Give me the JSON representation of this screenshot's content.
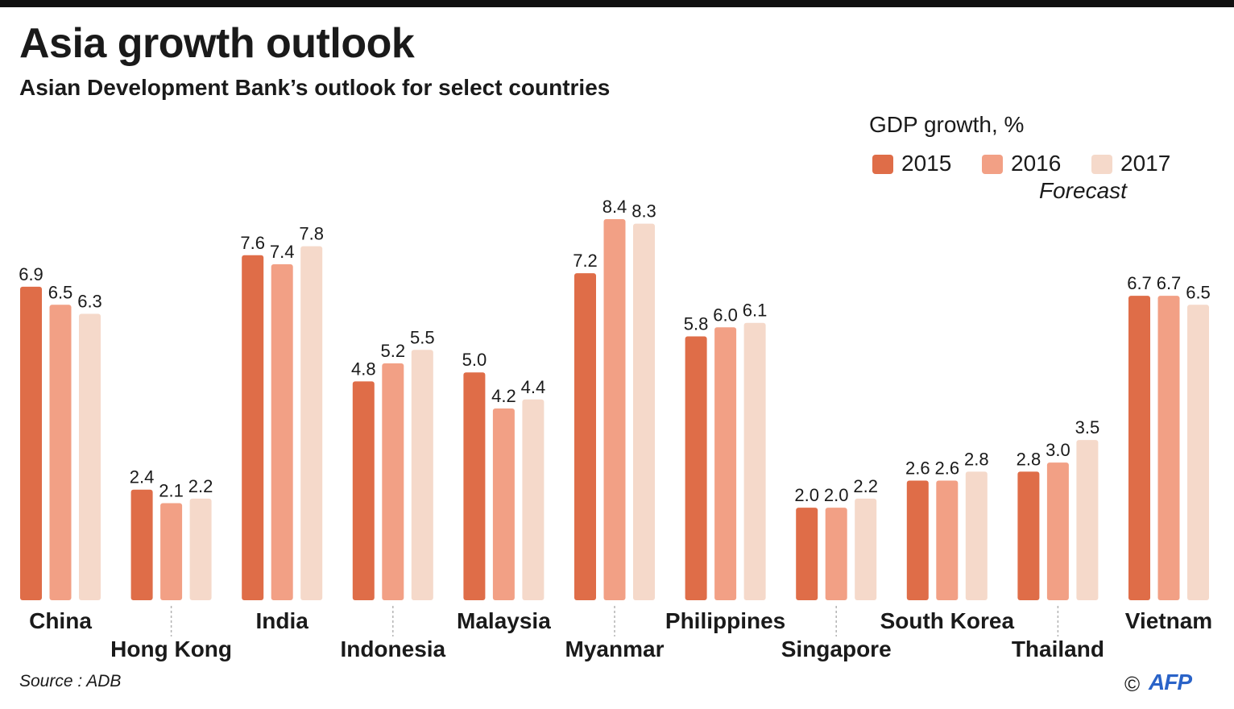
{
  "header": {
    "title": "Asia growth outlook",
    "subtitle": "Asian Development Bank’s outlook for select countries"
  },
  "legend": {
    "title": "GDP growth, %",
    "items": [
      {
        "label": "2015",
        "color": "#df6d48"
      },
      {
        "label": "2016",
        "color": "#f2a085"
      },
      {
        "label": "2017",
        "color": "#f5d9ca"
      }
    ],
    "note": "Forecast"
  },
  "chart_data": {
    "type": "bar",
    "title": "Asia growth outlook",
    "subtitle": "Asian Development Bank’s outlook for select countries",
    "ylabel": "GDP growth, %",
    "categories": [
      "China",
      "Hong Kong",
      "India",
      "Indonesia",
      "Malaysia",
      "Myanmar",
      "Philippines",
      "Singapore",
      "South Korea",
      "Thailand",
      "Vietnam"
    ],
    "series": [
      {
        "name": "2015",
        "color": "#df6d48",
        "values": [
          6.9,
          2.4,
          7.6,
          4.8,
          5.0,
          7.2,
          5.8,
          2.0,
          2.6,
          2.8,
          6.7
        ]
      },
      {
        "name": "2016",
        "color": "#f2a085",
        "values": [
          6.5,
          2.1,
          7.4,
          5.2,
          4.2,
          8.4,
          6.0,
          2.0,
          2.6,
          3.0,
          6.7
        ]
      },
      {
        "name": "2017",
        "color": "#f5d9ca",
        "values": [
          6.3,
          2.2,
          7.8,
          5.5,
          4.4,
          8.3,
          6.1,
          2.2,
          2.8,
          3.5,
          6.5
        ]
      }
    ],
    "ylim": [
      0,
      8.4
    ],
    "grid": false,
    "legend_position": "top-right"
  },
  "footer": {
    "source": "Source : ADB",
    "copyright": "©",
    "agency": "AFP"
  }
}
